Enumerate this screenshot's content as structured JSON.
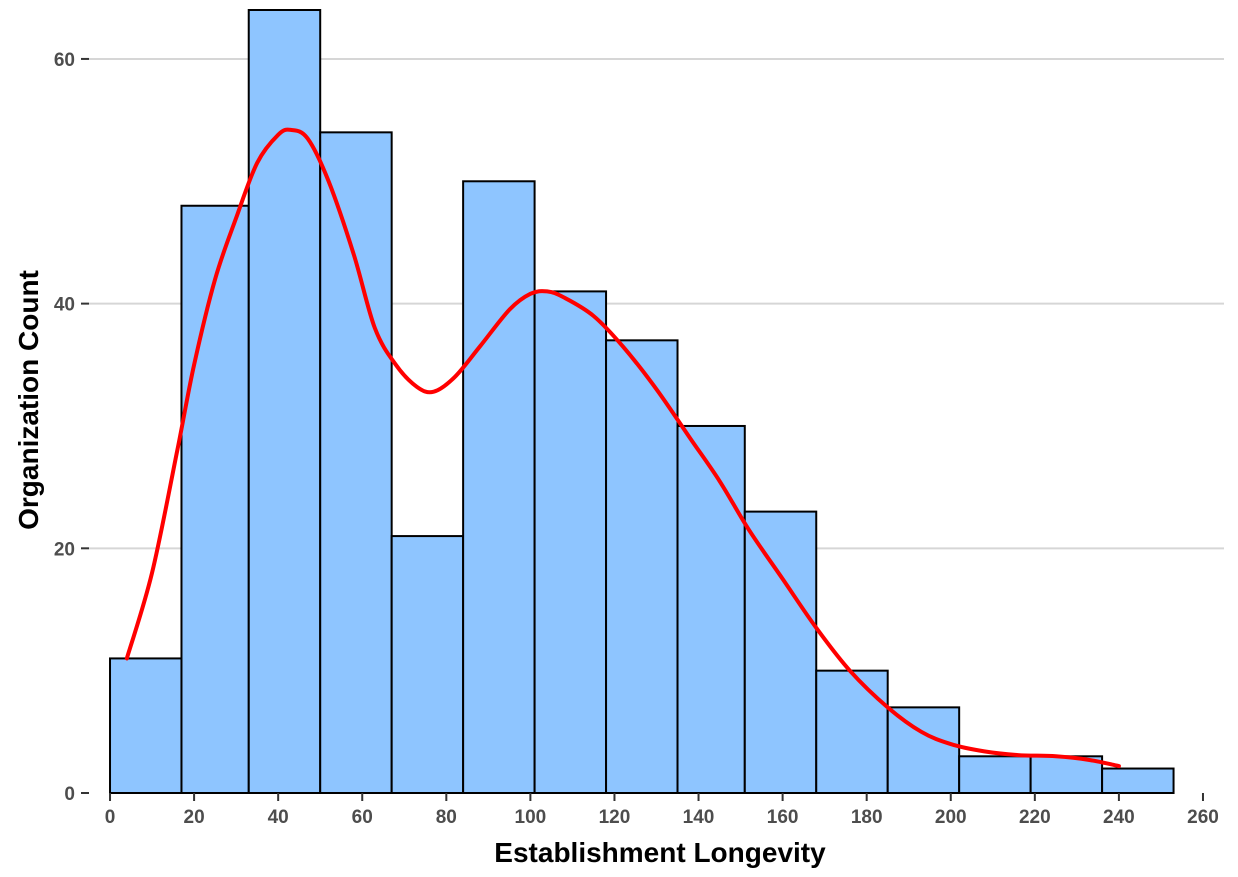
{
  "chart_data": {
    "type": "bar",
    "subtype": "histogram-with-density-curve",
    "title": "",
    "xlabel": "Establishment Longevity",
    "ylabel": "Organization Count",
    "xlim": [
      -5,
      265
    ],
    "ylim": [
      0,
      64
    ],
    "xticks": [
      0,
      20,
      40,
      60,
      80,
      100,
      120,
      140,
      160,
      180,
      200,
      220,
      240,
      260
    ],
    "yticks": [
      0,
      20,
      40,
      60
    ],
    "grid": {
      "horizontal": true,
      "vertical": false
    },
    "legend": "none",
    "bins": [
      {
        "x0": 0,
        "x1": 17,
        "count": 11
      },
      {
        "x0": 17,
        "x1": 33,
        "count": 48
      },
      {
        "x0": 33,
        "x1": 50,
        "count": 64
      },
      {
        "x0": 50,
        "x1": 67,
        "count": 54
      },
      {
        "x0": 67,
        "x1": 84,
        "count": 21
      },
      {
        "x0": 84,
        "x1": 101,
        "count": 50
      },
      {
        "x0": 101,
        "x1": 118,
        "count": 41
      },
      {
        "x0": 118,
        "x1": 135,
        "count": 37
      },
      {
        "x0": 135,
        "x1": 151,
        "count": 30
      },
      {
        "x0": 151,
        "x1": 168,
        "count": 23
      },
      {
        "x0": 168,
        "x1": 185,
        "count": 10
      },
      {
        "x0": 185,
        "x1": 202,
        "count": 7
      },
      {
        "x0": 202,
        "x1": 219,
        "count": 3
      },
      {
        "x0": 219,
        "x1": 236,
        "count": 3
      },
      {
        "x0": 236,
        "x1": 253,
        "count": 2
      }
    ],
    "density_curve": {
      "x": [
        4,
        10,
        16,
        20,
        25,
        30,
        35,
        40,
        43,
        47,
        52,
        58,
        63,
        68,
        73,
        77,
        82,
        88,
        95,
        100,
        104,
        108,
        115,
        122,
        130,
        138,
        145,
        152,
        160,
        168,
        176,
        185,
        193,
        200,
        208,
        216,
        225,
        233,
        240
      ],
      "y": [
        11,
        18,
        28,
        35,
        42,
        47,
        51.5,
        53.8,
        54.2,
        53.5,
        50,
        44,
        38,
        35,
        33.2,
        32.8,
        34,
        36.5,
        39.5,
        40.8,
        41,
        40.5,
        39,
        36.5,
        33,
        29,
        25.5,
        21.5,
        17.5,
        13.5,
        10,
        7,
        5,
        4,
        3.4,
        3.1,
        3,
        2.7,
        2.2
      ]
    },
    "colors": {
      "bar_fill": "#8ec5ff",
      "bar_stroke": "#000000",
      "curve": "#ff0000",
      "grid": "#d6d6d6",
      "axis_tick": "#333333"
    }
  }
}
